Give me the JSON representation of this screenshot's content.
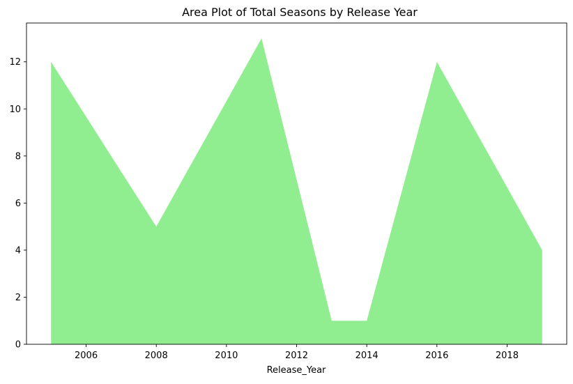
{
  "chart_data": {
    "type": "area",
    "title": "Area Plot of Total Seasons by Release Year",
    "xlabel": "Release_Year",
    "ylabel": "",
    "x": [
      2005,
      2006,
      2007,
      2008,
      2009,
      2010,
      2011,
      2012,
      2013,
      2014,
      2015,
      2016,
      2017,
      2018,
      2019
    ],
    "series": [
      {
        "values": [
          12,
          9.67,
          7.33,
          5,
          7.67,
          10.33,
          13,
          7,
          1,
          1,
          6.5,
          12,
          9.33,
          6.67,
          4
        ]
      }
    ],
    "xlim": [
      2004.3,
      2019.7
    ],
    "ylim": [
      0,
      13.65
    ],
    "xticks": [
      2006,
      2008,
      2010,
      2012,
      2014,
      2016,
      2018
    ],
    "yticks": [
      0,
      2,
      4,
      6,
      8,
      10,
      12
    ],
    "grid": false,
    "fill_color": "#90ee90"
  }
}
